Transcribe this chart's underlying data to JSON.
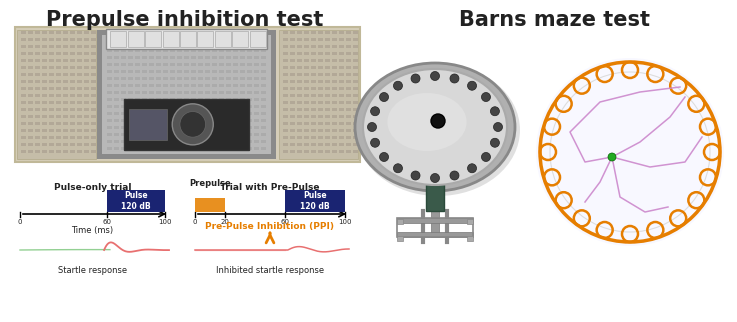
{
  "title_left": "Prepulse inhibition test",
  "title_right": "Barns maze test",
  "title_fontsize": 15,
  "title_color": "#222222",
  "bg_color": "#ffffff",
  "pulse_only_label": "Pulse-only trial",
  "trial_prepulse_label": "Trial with Pre-Pulse",
  "prepulse_label": "Prepulse",
  "time_label": "Time (ms)",
  "startle_label": "Startle response",
  "inhibited_label": "Inhibited startle response",
  "ppi_label": "Pre-Pulse Inhibition (PPI)",
  "ppi_color": "#e67e00",
  "pulse_box_color": "#1a2472",
  "pulse_text_color": "#ffffff",
  "prepulse_box_color": "#e89020",
  "startle_color": "#e87070",
  "green_color": "#80c880",
  "barnes_outer_color": "#e67e00",
  "barnes_track_color": "#cc88cc",
  "barnes_hole_color": "#e67e00",
  "barnes_dot_color": "#22aa22",
  "n_holes": 20,
  "box_photo_color": "#d5cdb8",
  "door_foam_color": "#c5bda8",
  "interior_wall_color": "#b8b8b8",
  "interior_bg_color": "#8a8a8a",
  "equipment_color": "#2a2a2a",
  "top_unit_color": "#e8e8e8"
}
